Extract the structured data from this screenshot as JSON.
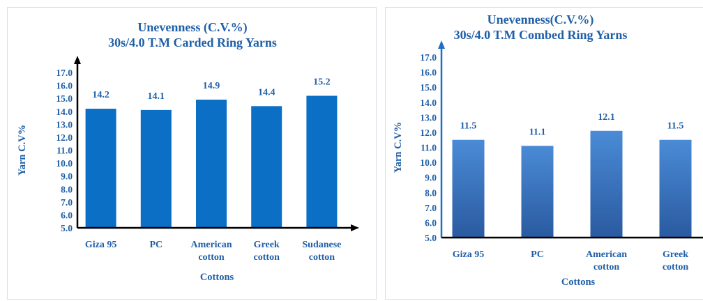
{
  "chart_data": [
    {
      "type": "bar",
      "title": [
        "Unevenness  (C.V.%)",
        "30s/4.0 T.M Carded Ring Yarns"
      ],
      "ylabel": "Yarn C.V%",
      "xlabel": "Cottons",
      "categories": [
        [
          "Giza 95"
        ],
        [
          "PC"
        ],
        [
          "American",
          "cotton"
        ],
        [
          "Greek",
          "cotton"
        ],
        [
          "Sudanese",
          "cotton"
        ]
      ],
      "values": [
        14.2,
        14.1,
        14.9,
        14.4,
        15.2
      ],
      "data_labels": [
        "14.2",
        "14.1",
        "14.9",
        "14.4",
        "15.2"
      ],
      "ylim": [
        5.0,
        17.0
      ],
      "yticks": [
        "5.0",
        "6.0",
        "7.0",
        "8.0",
        "9.0",
        "10.0",
        "11.0",
        "12.0",
        "13.0",
        "14.0",
        "15.0",
        "16.0",
        "17.0"
      ],
      "bar_color": "#0b6fc6",
      "grid": false,
      "axis_arrows": true
    },
    {
      "type": "bar",
      "title": [
        "Unevenness(C.V.%)",
        "30s/4.0 T.M Combed  Ring Yarns"
      ],
      "ylabel": "Yarn C.V%",
      "xlabel": "Cottons",
      "categories": [
        [
          "Giza 95"
        ],
        [
          "PC"
        ],
        [
          "American",
          "cotton"
        ],
        [
          "Greek",
          "cotton"
        ]
      ],
      "values": [
        11.5,
        11.1,
        12.1,
        11.5
      ],
      "data_labels": [
        "11.5",
        "11.1",
        "12.1",
        "11.5"
      ],
      "ylim": [
        5.0,
        17.0
      ],
      "yticks": [
        "5.0",
        "6.0",
        "7.0",
        "8.0",
        "9.0",
        "10.0",
        "11.0",
        "12.0",
        "13.0",
        "14.0",
        "15.0",
        "16.0",
        "17.0"
      ],
      "bar_color_top": "#4a8bd6",
      "bar_color_bottom": "#2a5aa0",
      "grid": false,
      "axis_arrows": true
    }
  ]
}
